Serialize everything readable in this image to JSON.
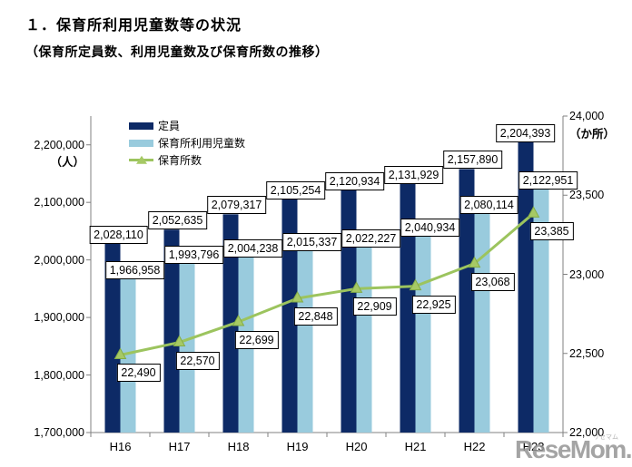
{
  "title": "１．保育所利用児童数等の状況",
  "subtitle": "（保育所定員数、利用児童数及び保育所数の推移）",
  "watermark": {
    "text": "ReseMom.",
    "ruby": "リセマム"
  },
  "chart_data": {
    "type": "combo-bar-line",
    "categories": [
      "H16",
      "H17",
      "H18",
      "H19",
      "H20",
      "H21",
      "H22",
      "H23"
    ],
    "series": [
      {
        "name": "定員",
        "type": "bar",
        "axis": "left",
        "color": "#0d2a66",
        "values": [
          2028110,
          2052635,
          2079317,
          2105254,
          2120934,
          2131929,
          2157890,
          2204393
        ],
        "labels": [
          "2,028,110",
          "2,052,635",
          "2,079,317",
          "2,105,254",
          "2,120,934",
          "2,131,929",
          "2,157,890",
          "2,204,393"
        ]
      },
      {
        "name": "保育所利用児童数",
        "type": "bar",
        "axis": "left",
        "color": "#99cbdd",
        "values": [
          1966958,
          1993796,
          2004238,
          2015337,
          2022227,
          2040934,
          2080114,
          2122951
        ],
        "labels": [
          "1,966,958",
          "1,993,796",
          "2,004,238",
          "2,015,337",
          "2,022,227",
          "2,040,934",
          "2,080,114",
          "2,122,951"
        ]
      },
      {
        "name": "保育所数",
        "type": "line",
        "axis": "right",
        "color": "#9cc45e",
        "marker_color": "#a6c965",
        "marker_edge_color": "#84ad45",
        "values": [
          22490,
          22570,
          22699,
          22848,
          22909,
          22925,
          23068,
          23385
        ],
        "labels": [
          "22,490",
          "22,570",
          "22,699",
          "22,848",
          "22,909",
          "22,925",
          "23,068",
          "23,385"
        ]
      }
    ],
    "left_axis": {
      "unit": "（人）",
      "min": 1700000,
      "max": 2250000,
      "tick_values": [
        2200000,
        2100000,
        2000000,
        1900000,
        1800000,
        1700000
      ],
      "tick_labels": [
        "2,200,000",
        "2,100,000",
        "2,000,000",
        "1,900,000",
        "1,800,000",
        "1,700,000"
      ]
    },
    "right_axis": {
      "unit": "（か所）",
      "min": 22000,
      "max": 24000,
      "tick_values": [
        24000,
        23500,
        23000,
        22500,
        22000
      ],
      "tick_labels": [
        "24,000",
        "23,500",
        "23,000",
        "22,500",
        "22,000"
      ]
    },
    "legend_position": "top-left-inside",
    "grid": false,
    "axis_color": "#808080"
  }
}
